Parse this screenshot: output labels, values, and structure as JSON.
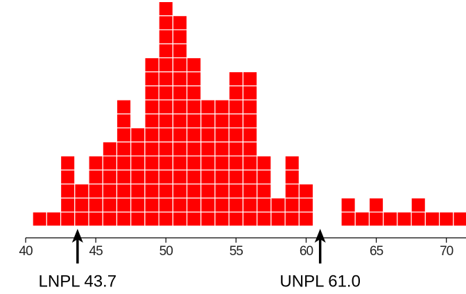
{
  "chart_data": {
    "type": "dotplot",
    "x": [
      41,
      42,
      43,
      44,
      45,
      46,
      47,
      48,
      49,
      50,
      51,
      52,
      53,
      54,
      55,
      56,
      57,
      58,
      59,
      60,
      61,
      62,
      63,
      64,
      65,
      66,
      67,
      68,
      69,
      70,
      71
    ],
    "values": [
      1,
      1,
      5,
      3,
      5,
      6,
      9,
      7,
      12,
      16,
      15,
      12,
      9,
      9,
      11,
      11,
      5,
      2,
      5,
      3,
      0,
      0,
      2,
      1,
      2,
      1,
      1,
      2,
      1,
      1,
      1
    ],
    "color": "#ff0000",
    "xlim": [
      40,
      71.4
    ],
    "xticks": [
      40,
      45,
      50,
      55,
      60,
      65,
      70
    ],
    "annotations": [
      {
        "label": "LNPL 43.7",
        "x": 43.7
      },
      {
        "label": "UNPL 61.0",
        "x": 61.0
      }
    ]
  }
}
